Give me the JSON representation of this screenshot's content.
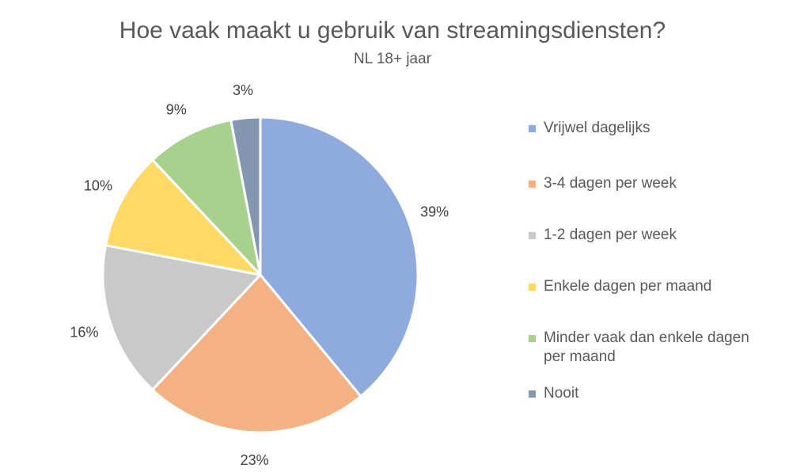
{
  "chart_data": {
    "type": "pie",
    "title": "Hoe vaak maakt u gebruik van streamingsdiensten?",
    "subtitle": "NL 18+ jaar",
    "legend_position": "right",
    "slices": [
      {
        "label": "Vrijwel dagelijks",
        "value": 39,
        "value_label": "39%",
        "color": "#8faadc"
      },
      {
        "label": "3-4 dagen per week",
        "value": 23,
        "value_label": "23%",
        "color": "#f4b183"
      },
      {
        "label": "1-2 dagen per week",
        "value": 16,
        "value_label": "16%",
        "color": "#c9c9c9"
      },
      {
        "label": "Enkele dagen per maand",
        "value": 10,
        "value_label": "10%",
        "color": "#ffd966"
      },
      {
        "label": "Minder vaak dan enkele dagen per maand",
        "value": 9,
        "value_label": "9%",
        "color": "#a9d18e"
      },
      {
        "label": "Nooit",
        "value": 3,
        "value_label": "3%",
        "color": "#8497b0"
      }
    ]
  }
}
